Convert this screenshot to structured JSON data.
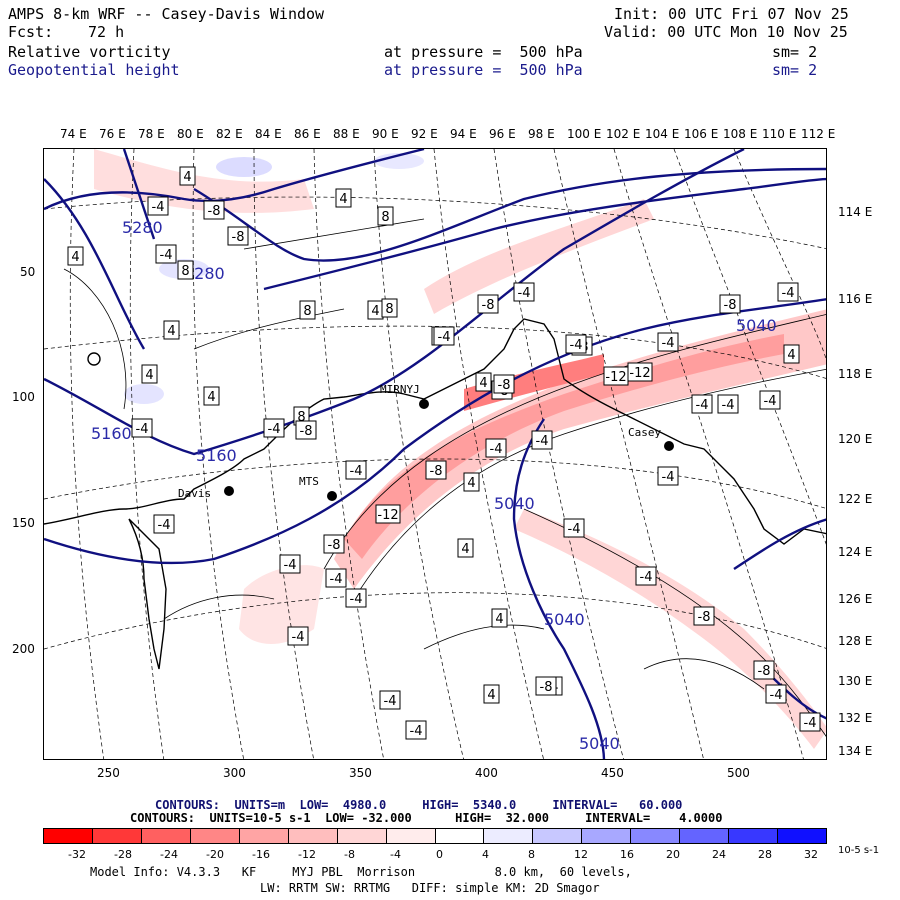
{
  "header": {
    "title": "AMPS 8-km WRF -- Casey-Davis Window",
    "init": "Init: 00 UTC Fri 07 Nov 25",
    "fcst_label": "Fcst:",
    "fcst_value": "72 h",
    "valid": "Valid: 00 UTC Mon 10 Nov 25",
    "field1": "Relative vorticity",
    "field1_pressure": "at pressure =  500 hPa",
    "field1_sm": "sm= 2",
    "field2": "Geopotential height",
    "field2_pressure": "at pressure =  500 hPa",
    "field2_sm": "sm= 2"
  },
  "lon_top": [
    "74 E",
    "76 E",
    "78 E",
    "80 E",
    "82 E",
    "84 E",
    "86 E",
    "88 E",
    "90 E",
    "92 E",
    "94 E",
    "96 E",
    "98 E",
    "100 E",
    "102 E",
    "104 E",
    "106 E",
    "108 E",
    "110 E",
    "112 E"
  ],
  "lon_right": [
    "114 E",
    "116 E",
    "118 E",
    "120 E",
    "122 E",
    "124 E",
    "126 E",
    "128 E",
    "130 E",
    "132 E",
    "134 E"
  ],
  "y_axis": [
    "50",
    "100",
    "150",
    "200"
  ],
  "x_axis": [
    "250",
    "300",
    "350",
    "400",
    "450",
    "500"
  ],
  "stations": {
    "mirny": "MIRNYJ",
    "casey": "Casey",
    "davis": "Davis",
    "mts": "MTS"
  },
  "height_labels": [
    "5280",
    "5280",
    "5160",
    "5160",
    "5040",
    "5040",
    "5040",
    "5040"
  ],
  "vort_labels": [
    "4",
    "-4",
    "-8",
    "4",
    "-4",
    "8",
    "4",
    "-8",
    "8",
    "4",
    "8",
    "4",
    "4",
    "4",
    "-4",
    "-4",
    "8",
    "-4",
    "-8",
    "-4",
    "4",
    "-4",
    "8",
    "-8",
    "-4",
    "-8",
    "-12",
    "-8",
    "-12",
    "-4",
    "-8",
    "-4",
    "-8",
    "-4",
    "4",
    "-8",
    "4",
    "-4",
    "-4",
    "-8",
    "-12",
    "-4",
    "-4",
    "-4",
    "-4",
    "-4",
    "-8",
    "-8",
    "-4",
    "-4",
    "-4",
    "-4",
    "4",
    "-4",
    "-4",
    "4",
    "-4",
    "-4",
    "-8",
    "-4",
    "-4",
    "-4",
    "4"
  ],
  "contour_info": {
    "height_line": "CONTOURS:  UNITS=m  LOW=  4980.0     HIGH=  5340.0     INTERVAL=   60.000",
    "vort_line": "CONTOURS:  UNITS=10-5 s-1  LOW= -32.000      HIGH=  32.000     INTERVAL=    4.0000"
  },
  "legend": {
    "colors": [
      "#ff0000",
      "#ff3838",
      "#ff6060",
      "#ff8686",
      "#ffa4a4",
      "#ffbebe",
      "#ffd6d6",
      "#ffecec",
      "#ffffff",
      "#ffffff",
      "#ececff",
      "#c8c8ff",
      "#a8a8ff",
      "#8888ff",
      "#6464ff",
      "#3838ff",
      "#1010ff"
    ],
    "ticks": [
      "-32",
      "-28",
      "-24",
      "-20",
      "-16",
      "-12",
      "-8",
      "-4",
      "0",
      "4",
      "8",
      "12",
      "16",
      "20",
      "24",
      "28",
      "32"
    ],
    "units": "10-5 s-1"
  },
  "footer": {
    "line1": "Model Info: V4.3.3   KF     MYJ PBL  Morrison           8.0 km,  60 levels,",
    "line2": "LW: RRTM SW: RRTMG   DIFF: simple KM: 2D Smagor"
  },
  "colors": {
    "height_contour": "#101080",
    "vort_positive": "#e8303a",
    "vort_negative": "#3048e0"
  }
}
